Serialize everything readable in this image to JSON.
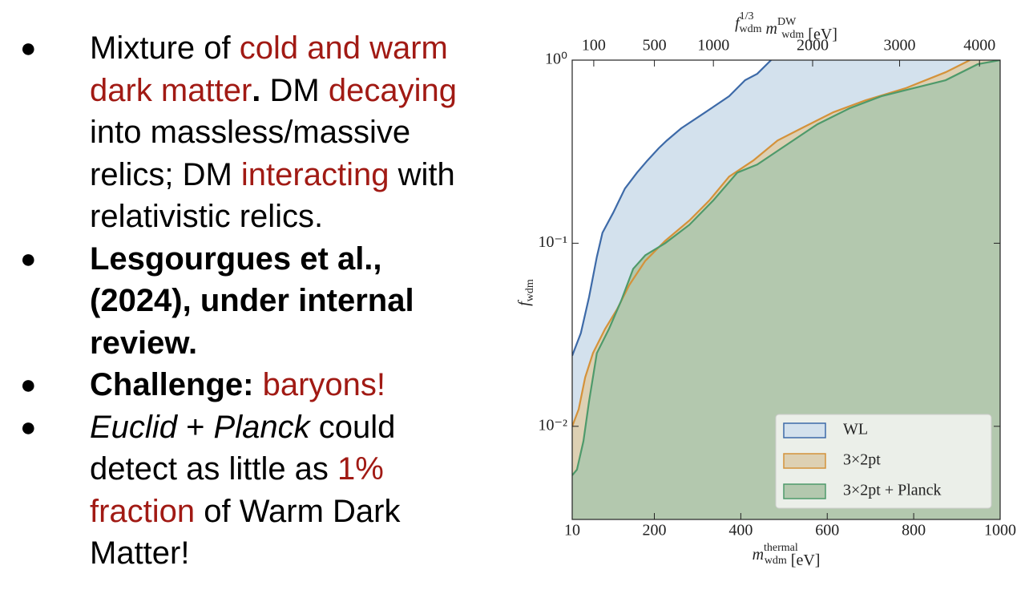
{
  "bullets": [
    {
      "lines": [
        [
          {
            "text": "Mixture of "
          },
          {
            "text": "cold and warm",
            "color": "#a11a14"
          }
        ],
        [
          {
            "text": "dark matter",
            "color": "#a11a14"
          },
          {
            "text": ". ",
            "bold": true
          },
          {
            "text": "DM "
          },
          {
            "text": "decaying",
            "color": "#a11a14"
          }
        ],
        [
          {
            "text": "into massless/massive"
          }
        ],
        [
          {
            "text": "relics; DM "
          },
          {
            "text": "interacting",
            "color": "#a11a14"
          },
          {
            "text": " with"
          }
        ],
        [
          {
            "text": "relativistic relics."
          }
        ]
      ]
    },
    {
      "lines": [
        [
          {
            "text": "Lesgourgues et al.,",
            "bold": true
          }
        ],
        [
          {
            "text": "(2024), under internal",
            "bold": true
          }
        ],
        [
          {
            "text": "review.",
            "bold": true
          }
        ]
      ]
    },
    {
      "lines": [
        [
          {
            "text": "Challenge: ",
            "bold": true
          },
          {
            "text": "baryons!",
            "color": "#a11a14"
          }
        ]
      ]
    },
    {
      "lines": [
        [
          {
            "text": "Euclid",
            "italic": true
          },
          {
            "text": " + "
          },
          {
            "text": "Planck",
            "italic": true
          },
          {
            "text": " could"
          }
        ],
        [
          {
            "text": "detect as little as "
          },
          {
            "text": "1%",
            "color": "#a11a14"
          }
        ],
        [
          {
            "text": "fraction",
            "color": "#a11a14"
          },
          {
            "text": " of Warm Dark"
          }
        ],
        [
          {
            "text": "Matter!"
          }
        ]
      ]
    }
  ],
  "bullet_symbol": "●",
  "chart_data": {
    "type": "area",
    "xlabel": {
      "main": "m",
      "sup": "thermal",
      "sub": "wdm",
      "unit": " [eV]"
    },
    "ylabel": {
      "main": "f",
      "sub": "wdm"
    },
    "x2label": {
      "main": "f",
      "sup": "1/3",
      "sub": "wdm",
      "main2": " m",
      "sup2": "DW",
      "sub2": "wdm",
      "unit": " [eV]"
    },
    "xlim": [
      10,
      1000
    ],
    "xticks": [
      10,
      200,
      400,
      600,
      800,
      1000
    ],
    "ylim": [
      0.0031,
      1
    ],
    "yscale": "log",
    "yticks": [
      {
        "value": 0.01,
        "label": "10⁻²"
      },
      {
        "value": 0.1,
        "label": "10⁻¹"
      },
      {
        "value": 1,
        "label": "10⁰"
      }
    ],
    "x2lim": [
      9.2,
      4270
    ],
    "x2scale": "power",
    "x2power": 0.75,
    "x2ticks": [
      100,
      500,
      1000,
      2000,
      3000,
      4000
    ],
    "legend": "lower right",
    "series": [
      {
        "name": "WL",
        "color": "#3d6aa8",
        "fill": "#d3e1ed",
        "x": [
          10,
          30,
          49,
          67,
          80,
          105,
          132,
          160,
          184,
          210,
          229,
          262,
          318,
          373,
          410,
          438,
          470
        ],
        "values": [
          0.0243,
          0.0323,
          0.0508,
          0.0842,
          0.114,
          0.147,
          0.199,
          0.243,
          0.283,
          0.33,
          0.364,
          0.424,
          0.519,
          0.635,
          0.777,
          0.842,
          1.0
        ]
      },
      {
        "name": "3×2pt",
        "color": "#d4923a",
        "fill": "#ddd0b3",
        "x": [
          10,
          25,
          40,
          58,
          86,
          114,
          142,
          179,
          225,
          281,
          327,
          373,
          429,
          485,
          540,
          614,
          689,
          781,
          874,
          930
        ],
        "values": [
          0.01,
          0.0124,
          0.0185,
          0.0251,
          0.034,
          0.0437,
          0.0591,
          0.0801,
          0.103,
          0.133,
          0.171,
          0.231,
          0.283,
          0.364,
          0.424,
          0.519,
          0.604,
          0.702,
          0.859,
          1.0
        ]
      },
      {
        "name": "3×2pt + Planck",
        "color": "#4e9a6b",
        "fill": "#b3c8ae",
        "x": [
          10,
          21,
          36,
          49,
          67,
          95,
          123,
          151,
          179,
          225,
          281,
          336,
          392,
          438,
          494,
          577,
          651,
          725,
          799,
          874,
          948,
          1000
        ],
        "values": [
          0.0054,
          0.0058,
          0.0083,
          0.0137,
          0.0251,
          0.034,
          0.0483,
          0.0724,
          0.0859,
          0.1,
          0.126,
          0.171,
          0.243,
          0.269,
          0.33,
          0.446,
          0.545,
          0.635,
          0.702,
          0.777,
          0.95,
          1.0
        ]
      }
    ]
  }
}
